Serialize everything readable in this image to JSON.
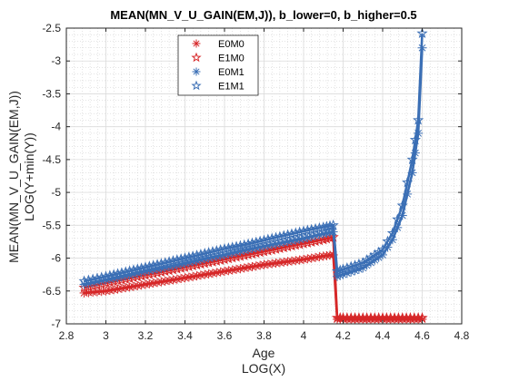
{
  "chart_data": {
    "type": "line",
    "title": "MEAN(MN_V_U_GAIN(EM,J)), b_lower=0, b_higher=0.5",
    "xlabel": "Age",
    "xlabel2": "LOG(X)",
    "ylabel": "MEAN(MN_V_U_GAIN(EM,J))",
    "ylabel2": "LOG(Y+min(Y))",
    "xlim": [
      2.8,
      4.8
    ],
    "ylim": [
      -7,
      -2.5
    ],
    "xticks": [
      2.8,
      3,
      3.2,
      3.4,
      3.6,
      3.8,
      4,
      4.2,
      4.4,
      4.6,
      4.8
    ],
    "xtick_labels": [
      "2.8",
      "3",
      "3.2",
      "3.4",
      "3.6",
      "3.8",
      "4",
      "4.2",
      "4.4",
      "4.6",
      "4.8"
    ],
    "yticks": [
      -7,
      -6.5,
      -6,
      -5.5,
      -5,
      -4.5,
      -4,
      -3.5,
      -3,
      -2.5
    ],
    "ytick_labels": [
      "-7",
      "-6.5",
      "-6",
      "-5.5",
      "-5",
      "-4.5",
      "-4",
      "-3.5",
      "-3",
      "-2.5"
    ],
    "grid": true,
    "minor_grid": true,
    "legend_position": "top-left",
    "series": [
      {
        "name": "E0M0",
        "color": "#d62728",
        "marker": "asterisk",
        "x": [
          2.89,
          3.0,
          3.1,
          3.2,
          3.3,
          3.4,
          3.5,
          3.6,
          3.7,
          3.8,
          3.9,
          4.0,
          4.1,
          4.15,
          4.17,
          4.2,
          4.3,
          4.4,
          4.5,
          4.6
        ],
        "y": [
          -6.53,
          -6.5,
          -6.45,
          -6.4,
          -6.35,
          -6.3,
          -6.25,
          -6.2,
          -6.15,
          -6.1,
          -6.06,
          -6.02,
          -5.97,
          -5.95,
          -6.93,
          -6.93,
          -6.93,
          -6.93,
          -6.93,
          -6.93
        ]
      },
      {
        "name": "E1M0",
        "color": "#d62728",
        "marker": "star",
        "x": [
          2.89,
          3.0,
          3.1,
          3.2,
          3.3,
          3.4,
          3.5,
          3.6,
          3.7,
          3.8,
          3.9,
          4.0,
          4.1,
          4.15,
          4.17,
          4.2,
          4.3,
          4.4,
          4.5,
          4.6
        ],
        "y": [
          -6.45,
          -6.38,
          -6.32,
          -6.26,
          -6.2,
          -6.14,
          -6.08,
          -6.02,
          -5.96,
          -5.9,
          -5.84,
          -5.78,
          -5.72,
          -5.68,
          -6.91,
          -6.91,
          -6.91,
          -6.91,
          -6.91,
          -6.91
        ]
      },
      {
        "name": "E0M1",
        "color": "#3b6fb5",
        "marker": "asterisk",
        "x": [
          2.89,
          3.0,
          3.1,
          3.2,
          3.3,
          3.4,
          3.5,
          3.6,
          3.7,
          3.8,
          3.9,
          4.0,
          4.1,
          4.15,
          4.17,
          4.2,
          4.3,
          4.4,
          4.45,
          4.5,
          4.55,
          4.58,
          4.6
        ],
        "y": [
          -6.4,
          -6.33,
          -6.27,
          -6.2,
          -6.14,
          -6.08,
          -6.01,
          -5.95,
          -5.88,
          -5.82,
          -5.76,
          -5.7,
          -5.63,
          -5.6,
          -6.28,
          -6.25,
          -6.15,
          -5.95,
          -5.72,
          -5.35,
          -4.7,
          -4.1,
          -2.8
        ]
      },
      {
        "name": "E1M1",
        "color": "#3b6fb5",
        "marker": "star",
        "x": [
          2.89,
          3.0,
          3.1,
          3.2,
          3.3,
          3.4,
          3.5,
          3.6,
          3.7,
          3.8,
          3.9,
          4.0,
          4.1,
          4.15,
          4.17,
          4.2,
          4.3,
          4.4,
          4.45,
          4.5,
          4.55,
          4.58,
          4.6
        ],
        "y": [
          -6.35,
          -6.28,
          -6.21,
          -6.14,
          -6.07,
          -6.0,
          -5.93,
          -5.86,
          -5.8,
          -5.73,
          -5.66,
          -5.59,
          -5.53,
          -5.5,
          -6.2,
          -6.17,
          -6.07,
          -5.87,
          -5.62,
          -5.2,
          -4.5,
          -3.9,
          -2.58
        ]
      }
    ]
  }
}
